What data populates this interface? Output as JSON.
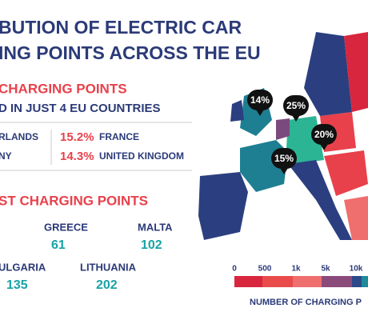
{
  "header": {
    "title_lines": [
      "BUTION OF ELECTRIC CAR",
      "ING POINTS ACROSS THE EU"
    ]
  },
  "top": {
    "heading": "CHARGING POINTS",
    "subheading": "D IN JUST 4 EU COUNTRIES",
    "rows": [
      {
        "left": "RLANDS",
        "share": "15.2%",
        "country": "FRANCE"
      },
      {
        "left": "NY",
        "share": "14.3%",
        "country": "UNITED KINGDOM"
      }
    ]
  },
  "bottom": {
    "heading": "ST CHARGING POINTS",
    "items": [
      {
        "country": "GREECE",
        "value": "61"
      },
      {
        "country": "MALTA",
        "value": "102"
      },
      {
        "country": "ULGARIA",
        "value": "135"
      },
      {
        "country": "LITHUANIA",
        "value": "202"
      }
    ]
  },
  "map": {
    "callouts": [
      "14%",
      "25%",
      "20%",
      "15%"
    ]
  },
  "legend": {
    "ticks": [
      "0",
      "500",
      "1k",
      "5k",
      "10k"
    ],
    "title": "NUMBER OF CHARGING P"
  }
}
